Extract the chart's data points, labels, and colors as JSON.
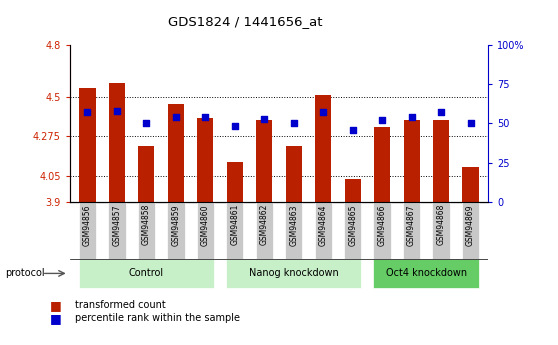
{
  "title": "GDS1824 / 1441656_at",
  "samples": [
    "GSM94856",
    "GSM94857",
    "GSM94858",
    "GSM94859",
    "GSM94860",
    "GSM94861",
    "GSM94862",
    "GSM94863",
    "GSM94864",
    "GSM94865",
    "GSM94866",
    "GSM94867",
    "GSM94868",
    "GSM94869"
  ],
  "transformed_count": [
    4.55,
    4.58,
    4.22,
    4.46,
    4.38,
    4.13,
    4.37,
    4.22,
    4.51,
    4.03,
    4.33,
    4.37,
    4.37,
    4.1
  ],
  "percentile_rank": [
    57,
    58,
    50,
    54,
    54,
    48,
    53,
    50,
    57,
    46,
    52,
    54,
    57,
    50
  ],
  "group_data": [
    {
      "label": "Control",
      "start": 0,
      "end": 4,
      "color": "#c8f0c8"
    },
    {
      "label": "Nanog knockdown",
      "start": 5,
      "end": 9,
      "color": "#c8f0c8"
    },
    {
      "label": "Oct4 knockdown",
      "start": 10,
      "end": 13,
      "color": "#66cc66"
    }
  ],
  "bar_color": "#b82000",
  "dot_color": "#0000cc",
  "ylim_left": [
    3.9,
    4.8
  ],
  "ylim_right": [
    0,
    100
  ],
  "yticks_left": [
    3.9,
    4.05,
    4.275,
    4.5,
    4.8
  ],
  "ytick_labels_left": [
    "3.9",
    "4.05",
    "4.275",
    "4.5",
    "4.8"
  ],
  "yticks_right": [
    0,
    25,
    50,
    75,
    100
  ],
  "ytick_labels_right": [
    "0",
    "25",
    "50",
    "75",
    "100%"
  ],
  "hlines": [
    4.05,
    4.275,
    4.5
  ],
  "bar_width": 0.55,
  "legend_items": [
    "transformed count",
    "percentile rank within the sample"
  ],
  "xtick_bg": "#c8c8c8",
  "plot_bg": "#ffffff"
}
